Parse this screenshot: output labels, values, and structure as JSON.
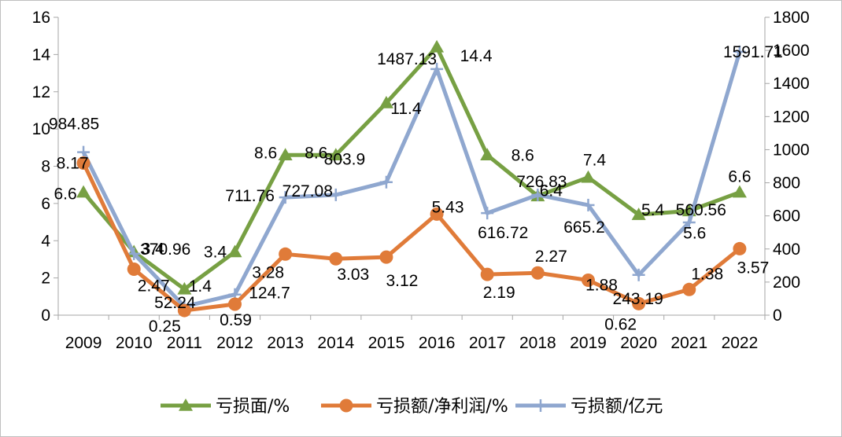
{
  "chart_data": {
    "type": "line",
    "title": "",
    "xlabel": "",
    "ylabel": "",
    "categories": [
      "2009",
      "2010",
      "2011",
      "2012",
      "2013",
      "2014",
      "2015",
      "2016",
      "2017",
      "2018",
      "2019",
      "2020",
      "2021",
      "2022"
    ],
    "y_left": {
      "range": [
        0,
        16
      ],
      "ticks": [
        0,
        2,
        4,
        6,
        8,
        10,
        12,
        14,
        16
      ]
    },
    "y_right": {
      "range": [
        0,
        1800
      ],
      "ticks": [
        0,
        200,
        400,
        600,
        800,
        1000,
        1200,
        1400,
        1600,
        1800
      ]
    },
    "grid": false,
    "legend_position": "bottom",
    "series": [
      {
        "name": "亏损面/%",
        "axis": "left",
        "color": "#77a043",
        "marker": "triangle",
        "values": [
          6.6,
          3.4,
          1.4,
          3.4,
          8.6,
          8.6,
          11.4,
          14.4,
          8.6,
          6.4,
          7.4,
          5.4,
          5.6,
          6.6
        ],
        "labels": [
          "6.6",
          "3.4",
          "1.4",
          "3.4",
          "8.6",
          "8.6",
          "11.4",
          "14.4",
          "8.6",
          "6.4",
          "7.4",
          "5.4",
          "5.6",
          "6.6"
        ]
      },
      {
        "name": "亏损额/净利润/%",
        "axis": "left",
        "color": "#e07b39",
        "marker": "circle",
        "values": [
          8.17,
          2.47,
          0.25,
          0.59,
          3.28,
          3.03,
          3.12,
          5.43,
          2.19,
          2.27,
          1.88,
          0.62,
          1.38,
          3.57
        ],
        "labels": [
          "8.17",
          "2.47",
          "0.25",
          "0.59",
          "3.28",
          "3.03",
          "3.12",
          "5.43",
          "2.19",
          "2.27",
          "1.88",
          "0.62",
          "1.38",
          "3.57"
        ]
      },
      {
        "name": "亏损额/亿元",
        "axis": "right",
        "color": "#8fa7cf",
        "marker": "plus",
        "values": [
          984.85,
          370.96,
          52.24,
          124.7,
          711.76,
          727.08,
          803.9,
          1487.13,
          616.72,
          726.83,
          665.2,
          243.19,
          560.56,
          1591.71
        ],
        "labels": [
          "984.85",
          "370.96",
          "52.24",
          "124.7",
          "711.76",
          "727.08",
          "803.9",
          "1487.13",
          "616.72",
          "726.83",
          "665.2",
          "243.19",
          "560.56",
          "1591.71"
        ]
      }
    ]
  }
}
